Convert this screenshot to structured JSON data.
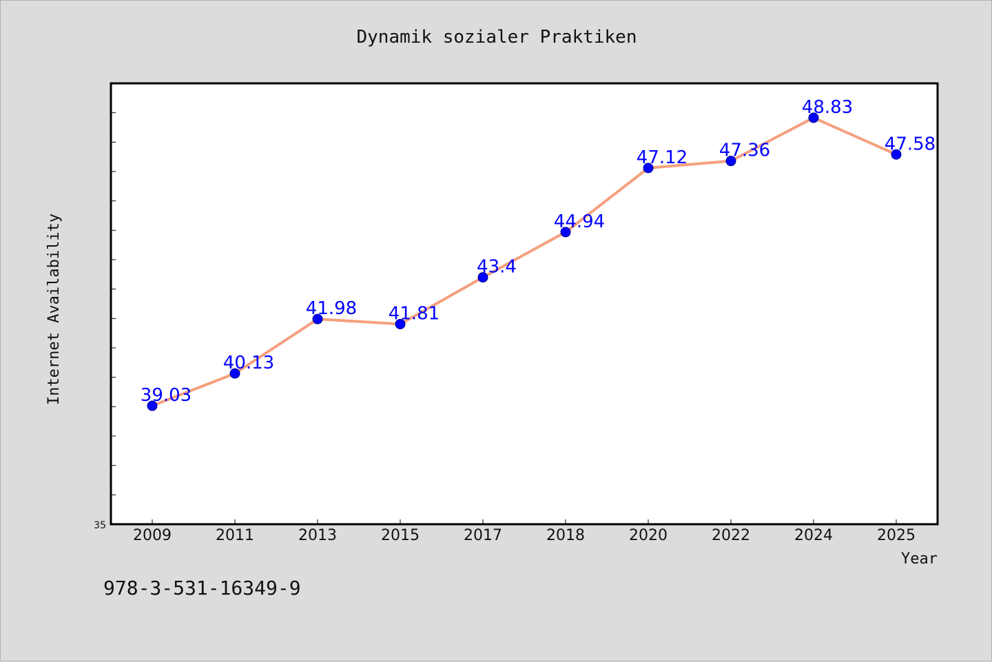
{
  "chart_data": {
    "type": "line",
    "title": "Dynamik sozialer Praktiken",
    "xlabel": "Year",
    "ylabel": "Internet Availability",
    "categories": [
      "2009",
      "2011",
      "2013",
      "2015",
      "2017",
      "2018",
      "2020",
      "2022",
      "2024",
      "2025"
    ],
    "series": [
      {
        "values": [
          39.03,
          40.13,
          41.98,
          41.81,
          43.4,
          44.94,
          47.12,
          47.36,
          48.83,
          47.58
        ],
        "data_labels": [
          "39.03",
          "40.13",
          "41.98",
          "41.81",
          "43.4",
          "44.94",
          "47.12",
          "47.36",
          "48.83",
          "47.58"
        ]
      }
    ],
    "ylim": [
      35,
      50
    ],
    "y_tick_labels": [
      "35"
    ],
    "grid": false,
    "legend": "none",
    "colors": {
      "line": "#f4a07e",
      "marker": "#0000ff",
      "label": "#0000ff",
      "background": "#dcdcdc",
      "plot_background": "#ffffff"
    }
  },
  "footer": {
    "text": "978-3-531-16349-9"
  }
}
